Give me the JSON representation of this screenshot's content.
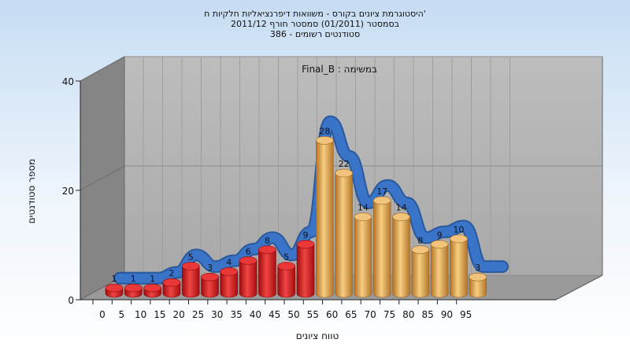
{
  "chart_data": {
    "type": "bar",
    "title_lines": [
      "היסטוגרמת ציונים בקורס - משוואות דיפרנציאליות חלקיות ח'",
      "בסמסטר  (01/2011)  סמסטר חורף 2011/12",
      "386 - סטודנטים רשומים"
    ],
    "inner_label": "Final_B : במשימה",
    "xlabel": "טווח ציונים",
    "ylabel": "מספר סטודנטים",
    "ylim": [
      0,
      40
    ],
    "yticks": [
      0,
      20,
      40
    ],
    "categories": [
      "0",
      "5",
      "10",
      "15",
      "20",
      "25",
      "30",
      "35",
      "40",
      "45",
      "50",
      "55",
      "60",
      "65",
      "70",
      "75",
      "80",
      "85",
      "90",
      "95"
    ],
    "values": [
      1,
      1,
      1,
      2,
      5,
      3,
      4,
      6,
      8,
      5,
      9,
      28,
      22,
      14,
      17,
      14,
      8,
      9,
      10,
      3
    ],
    "fail_threshold": 55,
    "colors": {
      "fail": "#d81e1e",
      "pass": "#e6a545",
      "trend": "#3a74c8"
    }
  }
}
